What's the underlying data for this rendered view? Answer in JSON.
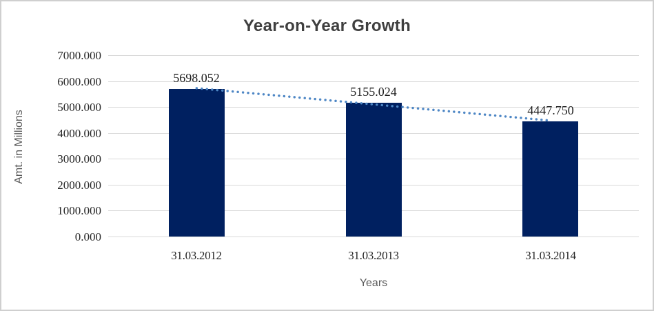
{
  "window": {
    "background": "#ffffff",
    "frame_border_color": "#cfcfcf"
  },
  "chart_data": {
    "type": "bar",
    "title": "Year-on-Year Growth",
    "xlabel": "Years",
    "ylabel": "Amt. in Millions",
    "categories": [
      "31.03.2012",
      "31.03.2013",
      "31.03.2014"
    ],
    "values": [
      5698.052,
      5155.024,
      4447.75
    ],
    "data_labels": [
      "5698.052",
      "5155.024",
      "4447.750"
    ],
    "ylim": [
      0,
      7000
    ],
    "ytick_step": 1000,
    "ytick_labels": [
      "7000.000",
      "6000.000",
      "5000.000",
      "4000.000",
      "3000.000",
      "2000.000",
      "1000.000",
      "0.000"
    ],
    "grid": true,
    "legend_position": "none",
    "trendline": {
      "fit": "linear",
      "style": "dotted"
    },
    "colors": {
      "bar": "#002060",
      "trendline": "#4e87c5",
      "gridline": "#d9d9d9",
      "title_text": "#3f3f3f",
      "tick_text": "#262626",
      "data_label_text": "#1f1f1f",
      "axis_title_text": "#595959"
    }
  }
}
